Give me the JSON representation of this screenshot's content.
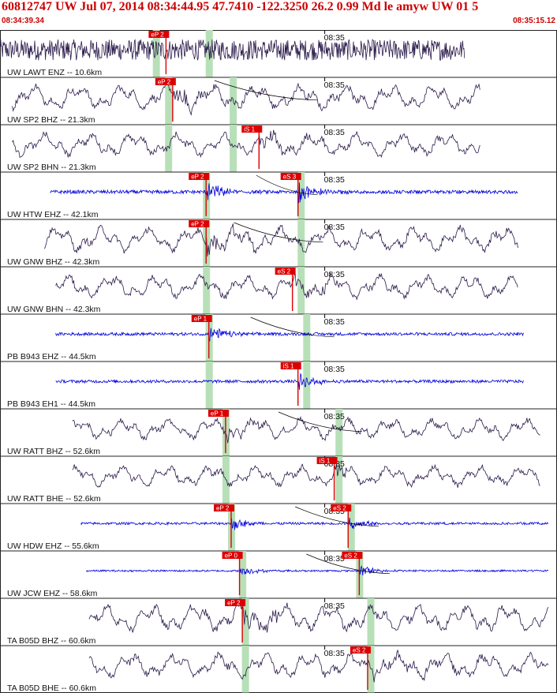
{
  "header": {
    "title": "60812747 UW Jul 07, 2014 08:34:44.95    47.7410 -122.3250 26.2 0.99 Md le amyw UW 01    5",
    "start_time": "08:34:39.34",
    "end_time": "08:35:15.12"
  },
  "time_mark": "08:35",
  "colors": {
    "title": "#cc0000",
    "pick": "#dd0000",
    "band": "#b8e0b8",
    "trace_dark": "#2a1a4a",
    "trace_blue": "#0000dd",
    "grid": "#222222"
  },
  "traces": [
    {
      "label": "UW LAWT ENZ -- 10.6km",
      "color": "dark",
      "kind": "noise",
      "start": 0.0,
      "end": 0.835,
      "amp": 0.55,
      "picks": [
        {
          "label": "eP 2",
          "x": 0.298
        }
      ],
      "band1": 0.28,
      "band2": 0.375,
      "moveout": null
    },
    {
      "label": "UW SP2 BHZ -- 21.3km",
      "color": "dark",
      "kind": "wave",
      "start": 0.022,
      "end": 0.862,
      "amp": 0.55,
      "picks": [
        {
          "label": "eP 2",
          "x": 0.31
        }
      ],
      "band1": 0.302,
      "band2": 0.418,
      "moveout": [
        0.385,
        0.57
      ]
    },
    {
      "label": "UW SP2 BHN -- 21.3km",
      "color": "dark",
      "kind": "wave",
      "start": 0.022,
      "end": 0.862,
      "amp": 0.5,
      "picks": [
        {
          "label": "iS 1",
          "x": 0.465
        }
      ],
      "band1": 0.302,
      "band2": 0.418,
      "moveout": null
    },
    {
      "label": "UW HTW EHZ -- 42.1km",
      "color": "blue",
      "kind": "burst",
      "start": 0.09,
      "end": 0.93,
      "amp": 0.3,
      "picks": [
        {
          "label": "eP 2",
          "x": 0.37
        },
        {
          "label": "eS 3",
          "x": 0.535
        }
      ],
      "band1": 0.37,
      "band2": 0.54,
      "moveout": [
        0.46,
        0.57
      ]
    },
    {
      "label": "UW GNW BHZ -- 42.3km",
      "color": "dark",
      "kind": "wave",
      "start": 0.08,
      "end": 0.93,
      "amp": 0.55,
      "picks": [
        {
          "label": "eP 2",
          "x": 0.37
        }
      ],
      "band1": 0.37,
      "band2": 0.54,
      "moveout": [
        0.42,
        0.58
      ]
    },
    {
      "label": "UW GNW BHN -- 42.3km",
      "color": "dark",
      "kind": "wave",
      "start": 0.1,
      "end": 0.93,
      "amp": 0.5,
      "picks": [
        {
          "label": "eS 2",
          "x": 0.525
        }
      ],
      "band1": 0.37,
      "band2": 0.54,
      "moveout": null
    },
    {
      "label": "PB B943 EHZ -- 44.5km",
      "color": "blue",
      "kind": "burst",
      "start": 0.1,
      "end": 0.94,
      "amp": 0.25,
      "picks": [
        {
          "label": "eP 1",
          "x": 0.375
        }
      ],
      "band1": 0.375,
      "band2": 0.55,
      "moveout": [
        0.45,
        0.6
      ]
    },
    {
      "label": "PB B943 EH1 -- 44.5km",
      "color": "blue",
      "kind": "burst",
      "start": 0.1,
      "end": 0.94,
      "amp": 0.25,
      "picks": [
        {
          "label": "iS 1",
          "x": 0.535
        }
      ],
      "band1": 0.375,
      "band2": 0.55,
      "moveout": null
    },
    {
      "label": "UW RATT BHZ -- 52.6km",
      "color": "dark",
      "kind": "wave",
      "start": 0.13,
      "end": 0.97,
      "amp": 0.45,
      "picks": [
        {
          "label": "eP 1",
          "x": 0.405
        }
      ],
      "band1": 0.405,
      "band2": 0.608,
      "moveout": [
        0.5,
        0.65
      ]
    },
    {
      "label": "UW RATT BHE -- 52.6km",
      "color": "dark",
      "kind": "wave",
      "start": 0.13,
      "end": 0.97,
      "amp": 0.45,
      "picks": [
        {
          "label": "iS 1",
          "x": 0.6
        }
      ],
      "band1": 0.405,
      "band2": 0.608,
      "moveout": null
    },
    {
      "label": "UW HDW EHZ -- 55.6km",
      "color": "blue",
      "kind": "burst",
      "start": 0.145,
      "end": 0.985,
      "amp": 0.2,
      "picks": [
        {
          "label": "eP 2",
          "x": 0.415
        },
        {
          "label": "eS 2",
          "x": 0.625
        }
      ],
      "band1": 0.415,
      "band2": 0.63,
      "moveout": [
        0.53,
        0.68
      ]
    },
    {
      "label": "UW JCW EHZ -- 58.6km",
      "color": "blue",
      "kind": "burst",
      "start": 0.155,
      "end": 0.985,
      "amp": 0.15,
      "picks": [
        {
          "label": "eP 0",
          "x": 0.43
        },
        {
          "label": "eS 2",
          "x": 0.645
        }
      ],
      "band1": 0.435,
      "band2": 0.645,
      "moveout": [
        0.55,
        0.7
      ]
    },
    {
      "label": "TA B05D BHZ -- 60.6km",
      "color": "dark",
      "kind": "wave",
      "start": 0.16,
      "end": 0.985,
      "amp": 0.6,
      "picks": [
        {
          "label": "eP 2",
          "x": 0.435
        }
      ],
      "band1": 0.44,
      "band2": 0.665,
      "moveout": null
    },
    {
      "label": "TA B05D BHE -- 60.6km",
      "color": "dark",
      "kind": "wave",
      "start": 0.16,
      "end": 0.985,
      "amp": 0.55,
      "picks": [
        {
          "label": "eS 2",
          "x": 0.66
        }
      ],
      "band1": 0.44,
      "band2": 0.665,
      "moveout": null
    }
  ]
}
